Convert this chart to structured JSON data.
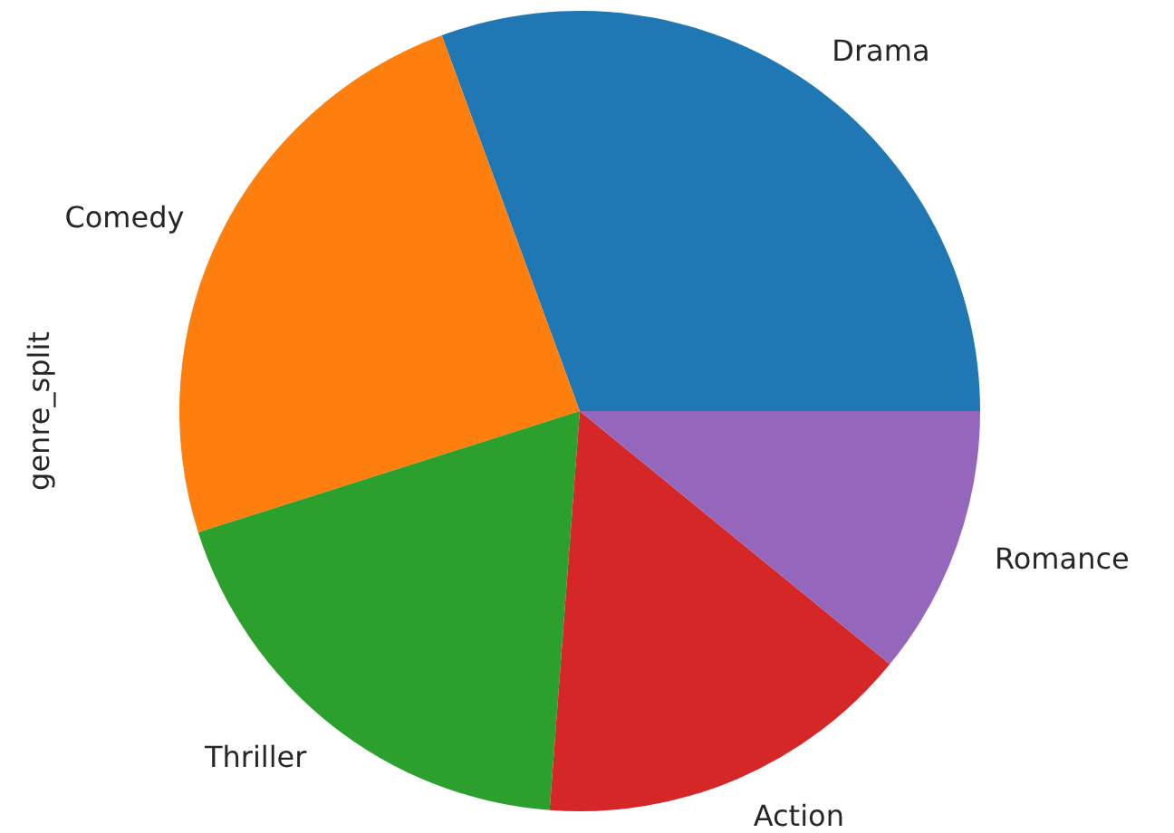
{
  "chart_data": {
    "type": "pie",
    "ylabel": "genre_split",
    "categories": [
      "Drama",
      "Comedy",
      "Thriller",
      "Action",
      "Romance"
    ],
    "values": [
      30.6,
      24.3,
      18.9,
      15.3,
      10.9
    ],
    "colors": [
      "#1f77b4",
      "#ff7f0e",
      "#2ca02c",
      "#d62728",
      "#9467bd"
    ],
    "legend": false
  }
}
